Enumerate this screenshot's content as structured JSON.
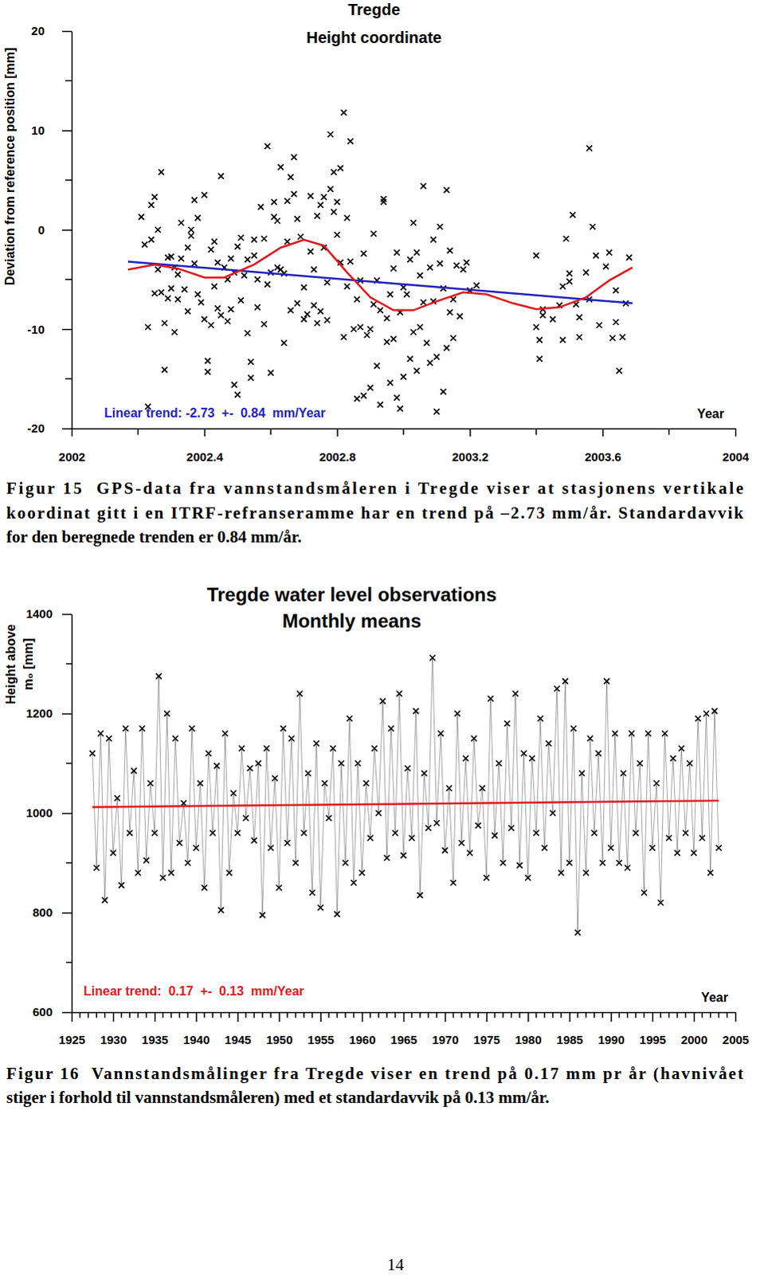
{
  "chart_data": [
    {
      "type": "scatter",
      "title": "Tregde",
      "subtitle": "Height coordinate",
      "x_label": "Year",
      "y_label": "Deviation from reference position [mm]",
      "xlim": [
        2002,
        2004
      ],
      "ylim": [
        -20,
        20
      ],
      "xticks": [
        2002,
        2002.4,
        2002.8,
        2003.2,
        2003.6,
        2004
      ],
      "yticks": [
        -20,
        -10,
        0,
        10,
        20
      ],
      "x_minor_ticks": [
        2002.2,
        2002.6,
        2003,
        2003.4,
        2003.8
      ],
      "y_minor_ticks": [
        -15,
        -5,
        5,
        15
      ],
      "annotations": [
        {
          "text": "Linear trend: -2.73  +-  0.84  mm/Year",
          "color": "#2222c0"
        }
      ],
      "series": [
        {
          "type": "scatter",
          "marker": "x",
          "color": "#000000",
          "x": [
            2002.21,
            2002.22,
            2002.23,
            2002.23,
            2002.24,
            2002.24,
            2002.25,
            2002.25,
            2002.26,
            2002.26,
            2002.27,
            2002.27,
            2002.28,
            2002.28,
            2002.29,
            2002.29,
            2002.3,
            2002.3,
            2002.31,
            2002.31,
            2002.32,
            2002.32,
            2002.33,
            2002.33,
            2002.34,
            2002.35,
            2002.35,
            2002.36,
            2002.36,
            2002.37,
            2002.37,
            2002.38,
            2002.38,
            2002.39,
            2002.4,
            2002.4,
            2002.41,
            2002.41,
            2002.42,
            2002.42,
            2002.43,
            2002.43,
            2002.44,
            2002.44,
            2002.45,
            2002.45,
            2002.46,
            2002.47,
            2002.47,
            2002.48,
            2002.48,
            2002.49,
            2002.49,
            2002.5,
            2002.5,
            2002.51,
            2002.51,
            2002.52,
            2002.53,
            2002.53,
            2002.54,
            2002.54,
            2002.55,
            2002.55,
            2002.56,
            2002.56,
            2002.57,
            2002.58,
            2002.58,
            2002.59,
            2002.59,
            2002.6,
            2002.6,
            2002.61,
            2002.61,
            2002.62,
            2002.62,
            2002.63,
            2002.63,
            2002.64,
            2002.64,
            2002.65,
            2002.65,
            2002.66,
            2002.66,
            2002.67,
            2002.67,
            2002.68,
            2002.68,
            2002.69,
            2002.7,
            2002.7,
            2002.71,
            2002.72,
            2002.72,
            2002.73,
            2002.73,
            2002.74,
            2002.74,
            2002.75,
            2002.75,
            2002.76,
            2002.76,
            2002.77,
            2002.77,
            2002.78,
            2002.78,
            2002.79,
            2002.79,
            2002.8,
            2002.8,
            2002.81,
            2002.81,
            2002.82,
            2002.82,
            2002.83,
            2002.83,
            2002.84,
            2002.84,
            2002.85,
            2002.86,
            2002.86,
            2002.87,
            2002.87,
            2002.88,
            2002.88,
            2002.89,
            2002.9,
            2002.9,
            2002.91,
            2002.91,
            2002.92,
            2002.92,
            2002.93,
            2002.93,
            2002.94,
            2002.94,
            2002.95,
            2002.95,
            2002.96,
            2002.96,
            2002.97,
            2002.97,
            2002.98,
            2002.98,
            2002.99,
            2002.99,
            2003.0,
            2003.0,
            2003.01,
            2003.02,
            2003.02,
            2003.03,
            2003.03,
            2003.04,
            2003.04,
            2003.05,
            2003.05,
            2003.06,
            2003.06,
            2003.07,
            2003.08,
            2003.08,
            2003.09,
            2003.09,
            2003.1,
            2003.1,
            2003.11,
            2003.11,
            2003.12,
            2003.12,
            2003.13,
            2003.13,
            2003.14,
            2003.14,
            2003.15,
            2003.15,
            2003.16,
            2003.17,
            2003.18,
            2003.19,
            2003.2,
            2003.22,
            2003.4,
            2003.4,
            2003.41,
            2003.41,
            2003.42,
            2003.42,
            2003.45,
            2003.47,
            2003.48,
            2003.48,
            2003.49,
            2003.5,
            2003.5,
            2003.51,
            2003.52,
            2003.53,
            2003.53,
            2003.55,
            2003.56,
            2003.56,
            2003.57,
            2003.58,
            2003.59,
            2003.61,
            2003.62,
            2003.63,
            2003.64,
            2003.64,
            2003.65,
            2003.66,
            2003.67,
            2003.68
          ],
          "values": [
            1.3,
            -1.5,
            -17.8,
            -9.8,
            -1.0,
            2.5,
            3.3,
            -6.4,
            0.0,
            -4.0,
            -6.3,
            5.8,
            -9.4,
            -14.1,
            -2.8,
            -6.9,
            -5.9,
            -2.7,
            -3.8,
            -10.3,
            -4.5,
            -7.0,
            0.7,
            -2.9,
            -6.0,
            -1.8,
            -8.2,
            0.0,
            -0.6,
            -3.4,
            3.0,
            1.2,
            -6.5,
            -7.3,
            3.5,
            -9.0,
            -13.2,
            -14.3,
            -9.6,
            -2.0,
            -1.2,
            -5.7,
            -3.3,
            -7.9,
            5.4,
            -8.6,
            -3.8,
            -9.2,
            -5.0,
            -2.9,
            -8.0,
            -15.6,
            -4.3,
            -16.6,
            -1.7,
            -0.8,
            -7.1,
            -4.6,
            -10.4,
            -3.0,
            -13.3,
            -14.9,
            -2.6,
            -1.0,
            -5.0,
            -7.8,
            2.3,
            -0.9,
            -9.5,
            8.4,
            -5.5,
            -14.4,
            -4.3,
            2.8,
            1.3,
            -3.8,
            0.9,
            6.3,
            -4.0,
            -4.4,
            -11.4,
            -1.2,
            2.9,
            -8.1,
            5.3,
            7.3,
            3.6,
            -7.4,
            1.1,
            -0.7,
            -9.0,
            -5.8,
            -8.5,
            3.4,
            -2.2,
            -4.0,
            -7.6,
            1.4,
            -9.4,
            -8.2,
            2.5,
            3.3,
            -1.8,
            -5.3,
            -9.1,
            4.1,
            9.6,
            1.8,
            5.8,
            -0.5,
            2.8,
            6.2,
            -3.3,
            11.8,
            -10.8,
            1.2,
            -5.7,
            8.9,
            -3.2,
            -10.0,
            -17.0,
            -7.0,
            -5.1,
            -9.8,
            -16.7,
            -2.4,
            -10.6,
            -15.9,
            -10.0,
            -0.4,
            -7.5,
            -5.1,
            -13.7,
            -17.6,
            -8.1,
            3.1,
            2.8,
            -8.9,
            -11.3,
            -15.4,
            -6.5,
            -3.9,
            -11.0,
            -16.9,
            -2.3,
            -18.0,
            -8.3,
            -14.8,
            -5.8,
            -6.5,
            -13.0,
            -3.0,
            -10.3,
            0.7,
            -14.2,
            -2.3,
            -4.6,
            -9.8,
            4.4,
            -7.3,
            -11.4,
            -3.8,
            -13.4,
            -1.0,
            -7.2,
            -12.8,
            -18.3,
            0.3,
            -3.4,
            -5.9,
            -16.3,
            4.0,
            -11.9,
            -8.3,
            -2.1,
            -7.0,
            -10.9,
            -3.6,
            -8.7,
            -4.0,
            -3.3,
            -6.1,
            -5.6,
            -2.6,
            -9.8,
            -11.1,
            -13.0,
            -8.6,
            -8.0,
            -9.0,
            -7.6,
            -11.1,
            -5.7,
            -0.9,
            -4.4,
            -5.2,
            1.5,
            -7.5,
            -10.8,
            -8.8,
            -4.3,
            -7.0,
            8.2,
            0.3,
            -2.6,
            -9.6,
            -3.7,
            -2.3,
            -10.9,
            -6.1,
            -9.3,
            -14.2,
            -10.8,
            -7.4,
            -2.8
          ]
        },
        {
          "type": "line",
          "line_style": "solid",
          "color": "#2222c0",
          "x": [
            2002.17,
            2003.69
          ],
          "values": [
            -3.2,
            -7.4
          ]
        },
        {
          "type": "line",
          "line_style": "solid",
          "color": "#e0191c",
          "x": [
            2002.17,
            2002.25,
            2002.32,
            2002.4,
            2002.46,
            2002.55,
            2002.63,
            2002.7,
            2002.76,
            2002.83,
            2002.9,
            2002.97,
            2003.03,
            2003.1,
            2003.18,
            2003.25,
            2003.33,
            2003.4,
            2003.47,
            2003.55,
            2003.62,
            2003.69
          ],
          "values": [
            -4.0,
            -3.5,
            -3.9,
            -4.8,
            -4.8,
            -3.5,
            -1.8,
            -1.0,
            -1.6,
            -4.3,
            -6.8,
            -8.1,
            -8.1,
            -7.2,
            -6.3,
            -6.5,
            -7.4,
            -8.0,
            -7.8,
            -6.8,
            -5.1,
            -3.8
          ]
        }
      ]
    },
    {
      "type": "line",
      "title": "Tregde water level observations",
      "subtitle": "Monthly means",
      "x_label": "Year",
      "y_label": [
        "Height above",
        "m₀ [mm]"
      ],
      "xlim": [
        1925,
        2005
      ],
      "ylim": [
        600,
        1400
      ],
      "xticks": [
        1925,
        1930,
        1935,
        1940,
        1945,
        1950,
        1955,
        1960,
        1965,
        1970,
        1975,
        1980,
        1985,
        1990,
        1995,
        2000,
        2005
      ],
      "yticks": [
        600,
        800,
        1000,
        1200,
        1400
      ],
      "x_minor_ticks": [
        1926,
        1927,
        1928,
        1929,
        1931,
        1932,
        1933,
        1934,
        1936,
        1937,
        1938,
        1939,
        1941,
        1942,
        1943,
        1944,
        1946,
        1947,
        1948,
        1949,
        1951,
        1952,
        1953,
        1954,
        1956,
        1957,
        1958,
        1959,
        1961,
        1962,
        1963,
        1964,
        1966,
        1967,
        1968,
        1969,
        1971,
        1972,
        1973,
        1974,
        1976,
        1977,
        1978,
        1979,
        1981,
        1982,
        1983,
        1984,
        1986,
        1987,
        1988,
        1989,
        1991,
        1992,
        1993,
        1994,
        1996,
        1997,
        1998,
        1999,
        2001,
        2002,
        2003,
        2004
      ],
      "y_minor_ticks": [
        700,
        900,
        1100,
        1300
      ],
      "annotations": [
        {
          "text": "Linear trend:  0.17  +-  0.13  mm/Year",
          "color": "#e0191c"
        }
      ],
      "series": [
        {
          "type": "line",
          "marker": "x",
          "line_style": "solid",
          "color": "#000000",
          "x": [
            1927.5,
            1928,
            1928.5,
            1929,
            1929.5,
            1930,
            1930.5,
            1931,
            1931.5,
            1932,
            1932.5,
            1933,
            1933.5,
            1934,
            1934.5,
            1935,
            1935.5,
            1936,
            1936.5,
            1937,
            1937.5,
            1938,
            1938.5,
            1939,
            1939.5,
            1940,
            1940.5,
            1941,
            1941.5,
            1942,
            1942.5,
            1943,
            1943.5,
            1944,
            1944.5,
            1945,
            1945.5,
            1946,
            1946.5,
            1947,
            1947.5,
            1948,
            1948.5,
            1949,
            1949.5,
            1950,
            1950.5,
            1951,
            1951.5,
            1952,
            1952.5,
            1953,
            1953.5,
            1954,
            1954.5,
            1955,
            1955.5,
            1956,
            1956.5,
            1957,
            1957.5,
            1958,
            1958.5,
            1959,
            1959.5,
            1960,
            1960.5,
            1961,
            1961.5,
            1962,
            1962.5,
            1963,
            1963.5,
            1964,
            1964.5,
            1965,
            1965.5,
            1966,
            1966.5,
            1967,
            1967.5,
            1968,
            1968.5,
            1969,
            1969.5,
            1970,
            1970.5,
            1971,
            1971.5,
            1972,
            1972.5,
            1973,
            1973.5,
            1974,
            1974.5,
            1975,
            1975.5,
            1976,
            1976.5,
            1977,
            1977.5,
            1978,
            1978.5,
            1979,
            1979.5,
            1980,
            1980.5,
            1981,
            1981.5,
            1982,
            1982.5,
            1983,
            1983.5,
            1984,
            1984.5,
            1985,
            1985.5,
            1986,
            1986.5,
            1987,
            1987.5,
            1988,
            1988.5,
            1989,
            1989.5,
            1990,
            1990.5,
            1991,
            1991.5,
            1992,
            1992.5,
            1993,
            1993.5,
            1994,
            1994.5,
            1995,
            1995.5,
            1996,
            1996.5,
            1997,
            1997.5,
            1998,
            1998.5,
            1999,
            1999.5,
            2000,
            2000.5,
            2001,
            2001.5,
            2002,
            2002.5,
            2003
          ],
          "values": [
            1120,
            890,
            1160,
            825,
            1150,
            920,
            1030,
            855,
            1170,
            960,
            1085,
            880,
            1170,
            905,
            1060,
            960,
            1275,
            870,
            1200,
            880,
            1150,
            940,
            1020,
            900,
            1170,
            930,
            1060,
            850,
            1120,
            960,
            1095,
            805,
            1160,
            880,
            1040,
            960,
            1130,
            990,
            1090,
            945,
            1100,
            795,
            1130,
            930,
            1070,
            850,
            1170,
            940,
            1150,
            900,
            1240,
            960,
            1080,
            840,
            1140,
            810,
            1060,
            990,
            1130,
            797,
            1100,
            900,
            1190,
            860,
            1100,
            880,
            1060,
            950,
            1130,
            1000,
            1225,
            910,
            1170,
            960,
            1240,
            915,
            1090,
            950,
            1205,
            835,
            1080,
            970,
            1312,
            980,
            1160,
            925,
            1050,
            860,
            1200,
            940,
            1110,
            920,
            1150,
            975,
            1050,
            870,
            1230,
            955,
            1100,
            900,
            1180,
            970,
            1240,
            895,
            1120,
            870,
            1110,
            960,
            1190,
            930,
            1140,
            1000,
            1250,
            880,
            1265,
            900,
            1170,
            760,
            1080,
            880,
            1150,
            960,
            1120,
            900,
            1265,
            930,
            1160,
            900,
            1080,
            890,
            1160,
            960,
            1100,
            840,
            1160,
            930,
            1060,
            820,
            1160,
            950,
            1110,
            920,
            1130,
            960,
            1100,
            920,
            1190,
            950,
            1200,
            880,
            1205,
            930
          ]
        },
        {
          "type": "line",
          "line_style": "solid",
          "color": "#e0191c",
          "x": [
            1927.5,
            2003
          ],
          "values": [
            1012,
            1025
          ]
        }
      ]
    }
  ],
  "page": {
    "captions": [
      [
        "Figur 15  GPS-data fra vannstandsmåleren i Tregde viser at stasjonens vertikale",
        "koordinat gitt i en ITRF-refranseramme har en trend på –2.73 mm/år. Standardavvik",
        "for den beregnede trenden er 0.84 mm/år."
      ],
      [
        "Figur 16  Vannstandsmålinger fra Tregde viser en trend på 0.17 mm pr år (havnivået",
        "stiger i forhold til vannstandsmåleren) med et standardavvik på 0.13 mm/år."
      ]
    ],
    "page_number": "14"
  }
}
